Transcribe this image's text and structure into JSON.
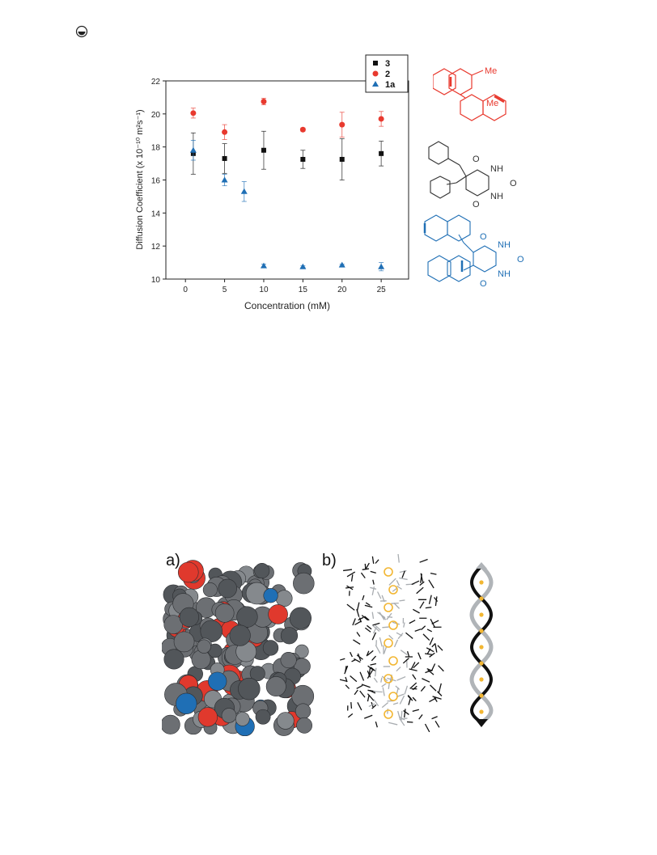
{
  "corner_icon": "circle-logo-icon",
  "chart_data": {
    "type": "scatter",
    "xlabel": "Concentration (mM)",
    "ylabel": "Diffusion Coefficient (x 10⁻¹⁰ m²s⁻¹)",
    "xlim": [
      -2.5,
      28.5
    ],
    "ylim": [
      10,
      22
    ],
    "x_ticks": [
      "0",
      "5",
      "10",
      "15",
      "20",
      "25"
    ],
    "y_ticks": [
      "10",
      "12",
      "14",
      "16",
      "18",
      "20",
      "22"
    ],
    "legend_position": "top-right",
    "grid": false,
    "series": [
      {
        "name": "3",
        "color": "#111111",
        "marker": "square",
        "points": [
          {
            "x": 1,
            "y": 17.6,
            "err": 1.25
          },
          {
            "x": 5,
            "y": 17.3,
            "err": 0.9
          },
          {
            "x": 10,
            "y": 17.8,
            "err": 1.15
          },
          {
            "x": 15,
            "y": 17.25,
            "err": 0.55
          },
          {
            "x": 20,
            "y": 17.25,
            "err": 1.25
          },
          {
            "x": 25,
            "y": 17.6,
            "err": 0.75
          }
        ]
      },
      {
        "name": "2",
        "color": "#e8392e",
        "marker": "circle",
        "points": [
          {
            "x": 1,
            "y": 20.05,
            "err": 0.3
          },
          {
            "x": 5,
            "y": 18.9,
            "err": 0.45
          },
          {
            "x": 10,
            "y": 20.75,
            "err": 0.2
          },
          {
            "x": 15,
            "y": 19.05,
            "err": 0.1
          },
          {
            "x": 20,
            "y": 19.35,
            "err": 0.75
          },
          {
            "x": 25,
            "y": 19.7,
            "err": 0.45
          }
        ]
      },
      {
        "name": "1a",
        "color": "#1f6fb5",
        "marker": "triangle",
        "points": [
          {
            "x": 1,
            "y": 17.8,
            "err": 0.6
          },
          {
            "x": 5,
            "y": 16.0,
            "err": 0.35
          },
          {
            "x": 7.5,
            "y": 15.3,
            "err": 0.6
          },
          {
            "x": 10,
            "y": 10.8,
            "err": 0.1
          },
          {
            "x": 15,
            "y": 10.75,
            "err": 0.05
          },
          {
            "x": 20,
            "y": 10.85,
            "err": 0.05
          },
          {
            "x": 25,
            "y": 10.75,
            "err": 0.25
          }
        ]
      }
    ]
  },
  "structures": {
    "red_label_me1": "Me",
    "red_label_me2": "Me",
    "black_nh1": "NH",
    "black_nh2": "NH",
    "black_o1": "O",
    "black_o2": "O",
    "black_o3": "O",
    "blue_nh1": "NH",
    "blue_nh2": "NH",
    "blue_o1": "O",
    "blue_o2": "O",
    "blue_o3": "O"
  },
  "bottom_figure": {
    "panel_a_label": "a)",
    "panel_b_label": "b)"
  }
}
